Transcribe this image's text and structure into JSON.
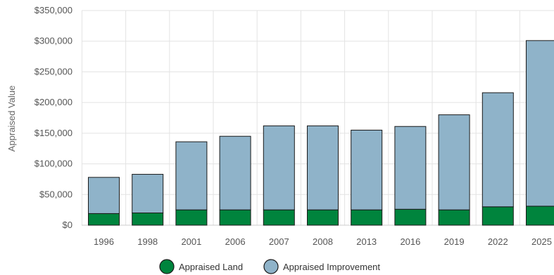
{
  "chart_data": {
    "type": "bar",
    "stacked": true,
    "ylabel": "Appraised Value",
    "ylim": [
      0,
      350000
    ],
    "yticks": [
      0,
      50000,
      100000,
      150000,
      200000,
      250000,
      300000,
      350000
    ],
    "ytick_labels": [
      "$0",
      "$50,000",
      "$100,000",
      "$150,000",
      "$200,000",
      "$250,000",
      "$300,000",
      "$350,000"
    ],
    "grid": true,
    "legend_position": "bottom-center",
    "categories": [
      "1996",
      "1998",
      "2001",
      "2006",
      "2007",
      "2008",
      "2013",
      "2016",
      "2019",
      "2022",
      "2025"
    ],
    "series": [
      {
        "name": "Appraised Land",
        "color": "#00843D",
        "values": [
          19000,
          20000,
          25000,
          25000,
          25000,
          25000,
          25000,
          26000,
          25000,
          30000,
          31000
        ]
      },
      {
        "name": "Appraised Improvement",
        "color": "#8FB3C9",
        "values": [
          59000,
          63000,
          111000,
          120000,
          137000,
          137000,
          130000,
          135000,
          155000,
          186000,
          270000
        ]
      }
    ]
  }
}
